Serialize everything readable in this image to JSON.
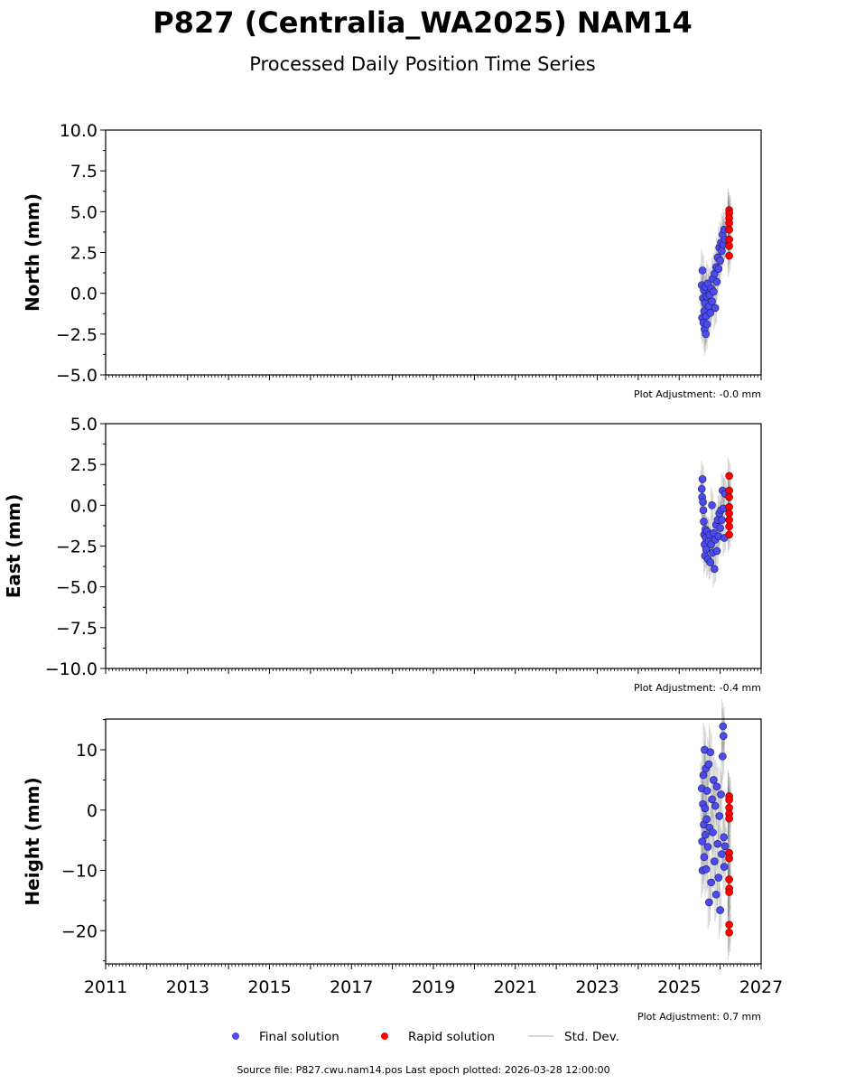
{
  "chart_data": {
    "type": "scatter",
    "title": "P827 (Centralia_WA2025) NAM14",
    "subtitle": "Processed Daily Position Time Series",
    "x_range": [
      2011,
      2027
    ],
    "x_ticks": [
      "2011",
      "2013",
      "2015",
      "2017",
      "2019",
      "2021",
      "2023",
      "2025",
      "2027"
    ],
    "legend": {
      "placement": "bottom-center",
      "entries": [
        {
          "label": "Final solution",
          "color": "#4b4bf0"
        },
        {
          "label": "Rapid solution",
          "color": "#ff0000"
        },
        {
          "label": "Std. Dev.",
          "color": "#cccccc"
        }
      ]
    },
    "footer": "Source file: P827.cwu.nam14.pos  Last epoch plotted: 2026-03-28 12:00:00",
    "panels": [
      {
        "ylabel": "North (mm)",
        "ylim": [
          -5,
          10
        ],
        "y_ticks": [
          "10.0",
          "7.5",
          "5.0",
          "2.5",
          "0.0",
          "−2.5",
          "−5.0"
        ],
        "y_tick_values": [
          10,
          7.5,
          5,
          2.5,
          0,
          -2.5,
          -5
        ],
        "adjustment": "Plot Adjustment: -0.0 mm",
        "sigma": 1.3,
        "final": [
          [
            2025.55,
            0.5
          ],
          [
            2025.56,
            -1.5
          ],
          [
            2025.57,
            1.4
          ],
          [
            2025.58,
            -0.3
          ],
          [
            2025.59,
            -1.8
          ],
          [
            2025.6,
            0.2
          ],
          [
            2025.61,
            -1.1
          ],
          [
            2025.62,
            -2.2
          ],
          [
            2025.63,
            -0.6
          ],
          [
            2025.64,
            0.4
          ],
          [
            2025.65,
            -2.5
          ],
          [
            2025.66,
            -1.4
          ],
          [
            2025.67,
            -0.2
          ],
          [
            2025.68,
            -1.9
          ],
          [
            2025.7,
            0.6
          ],
          [
            2025.72,
            -0.8
          ],
          [
            2025.74,
            -0.1
          ],
          [
            2025.76,
            -1.2
          ],
          [
            2025.78,
            0.3
          ],
          [
            2025.8,
            -0.5
          ],
          [
            2025.82,
            0.9
          ],
          [
            2025.84,
            0.1
          ],
          [
            2025.86,
            1.2
          ],
          [
            2025.88,
            -0.9
          ],
          [
            2025.9,
            1.6
          ],
          [
            2025.92,
            0.7
          ],
          [
            2025.94,
            2.2
          ],
          [
            2025.96,
            1.5
          ],
          [
            2025.98,
            2.8
          ],
          [
            2026.0,
            2.0
          ],
          [
            2026.02,
            3.1
          ],
          [
            2026.04,
            2.6
          ],
          [
            2026.06,
            3.6
          ],
          [
            2026.08,
            3.0
          ],
          [
            2026.1,
            3.9
          ],
          [
            2026.12,
            3.3
          ]
        ],
        "rapid": [
          [
            2026.22,
            5.1
          ],
          [
            2026.22,
            4.9
          ],
          [
            2026.22,
            4.6
          ],
          [
            2026.22,
            4.3
          ],
          [
            2026.22,
            3.9
          ],
          [
            2026.22,
            3.3
          ],
          [
            2026.22,
            2.9
          ],
          [
            2026.22,
            2.3
          ]
        ]
      },
      {
        "ylabel": "East (mm)",
        "ylim": [
          -10,
          5
        ],
        "y_ticks": [
          "5.0",
          "2.5",
          "0.0",
          "−2.5",
          "−5.0",
          "−7.5",
          "−10.0"
        ],
        "y_tick_values": [
          5,
          2.5,
          0,
          -2.5,
          -5,
          -7.5,
          -10
        ],
        "adjustment": "Plot Adjustment: -0.4 mm",
        "sigma": 1.1,
        "final": [
          [
            2025.55,
            1.0
          ],
          [
            2025.56,
            0.5
          ],
          [
            2025.57,
            1.6
          ],
          [
            2025.58,
            0.2
          ],
          [
            2025.59,
            -0.3
          ],
          [
            2025.6,
            -1.0
          ],
          [
            2025.61,
            -1.8
          ],
          [
            2025.62,
            -2.4
          ],
          [
            2025.63,
            -3.1
          ],
          [
            2025.64,
            -1.5
          ],
          [
            2025.65,
            -2.0
          ],
          [
            2025.66,
            -2.7
          ],
          [
            2025.68,
            -1.6
          ],
          [
            2025.7,
            -3.3
          ],
          [
            2025.72,
            -2.2
          ],
          [
            2025.74,
            -1.8
          ],
          [
            2025.76,
            -3.5
          ],
          [
            2025.78,
            -2.4
          ],
          [
            2025.8,
            -0.0
          ],
          [
            2025.82,
            -2.9
          ],
          [
            2025.84,
            -1.7
          ],
          [
            2025.86,
            -3.9
          ],
          [
            2025.88,
            -2.1
          ],
          [
            2025.9,
            -1.2
          ],
          [
            2025.92,
            -2.8
          ],
          [
            2025.94,
            -0.9
          ],
          [
            2025.96,
            -1.9
          ],
          [
            2025.98,
            -0.5
          ],
          [
            2026.0,
            -1.4
          ],
          [
            2026.02,
            -0.3
          ],
          [
            2026.04,
            -0.9
          ],
          [
            2026.06,
            0.9
          ],
          [
            2026.08,
            -0.2
          ],
          [
            2026.1,
            -2.0
          ],
          [
            2026.12,
            0.7
          ]
        ],
        "rapid": [
          [
            2026.22,
            1.8
          ],
          [
            2026.22,
            0.9
          ],
          [
            2026.22,
            0.5
          ],
          [
            2026.22,
            -0.1
          ],
          [
            2026.22,
            -0.5
          ],
          [
            2026.22,
            -0.9
          ],
          [
            2026.22,
            -1.3
          ],
          [
            2026.22,
            -1.8
          ]
        ]
      },
      {
        "ylabel": "Height (mm)",
        "ylim": [
          -25.5,
          15.1
        ],
        "y_ticks": [
          "10",
          "0",
          "−10",
          "−20"
        ],
        "y_tick_values": [
          10,
          0,
          -10,
          -20
        ],
        "adjustment": "Plot Adjustment: 0.7 mm",
        "sigma": 4.5,
        "final": [
          [
            2025.55,
            3.6
          ],
          [
            2025.56,
            -5.2
          ],
          [
            2025.57,
            -10.0
          ],
          [
            2025.58,
            1.0
          ],
          [
            2025.59,
            5.8
          ],
          [
            2025.6,
            -2.4
          ],
          [
            2025.61,
            -7.8
          ],
          [
            2025.62,
            10.0
          ],
          [
            2025.63,
            0.3
          ],
          [
            2025.64,
            -4.1
          ],
          [
            2025.65,
            6.9
          ],
          [
            2025.66,
            -9.8
          ],
          [
            2025.67,
            -1.5
          ],
          [
            2025.68,
            3.2
          ],
          [
            2025.7,
            -6.1
          ],
          [
            2025.72,
            7.6
          ],
          [
            2025.73,
            -15.3
          ],
          [
            2025.74,
            -2.9
          ],
          [
            2025.76,
            9.6
          ],
          [
            2025.78,
            -12.0
          ],
          [
            2025.8,
            1.8
          ],
          [
            2025.82,
            -3.7
          ],
          [
            2025.84,
            5.0
          ],
          [
            2025.86,
            -8.5
          ],
          [
            2025.88,
            0.7
          ],
          [
            2025.9,
            -14.0
          ],
          [
            2025.92,
            3.9
          ],
          [
            2025.94,
            -5.6
          ],
          [
            2025.96,
            -11.2
          ],
          [
            2025.98,
            -1.0
          ],
          [
            2026.0,
            -16.6
          ],
          [
            2026.02,
            2.6
          ],
          [
            2026.04,
            -7.3
          ],
          [
            2026.06,
            8.9
          ],
          [
            2026.07,
            13.9
          ],
          [
            2026.08,
            12.3
          ],
          [
            2026.09,
            -4.5
          ],
          [
            2026.1,
            -9.4
          ],
          [
            2026.12,
            -6.0
          ]
        ],
        "rapid": [
          [
            2026.22,
            2.3
          ],
          [
            2026.22,
            1.7
          ],
          [
            2026.22,
            0.4
          ],
          [
            2026.22,
            -0.6
          ],
          [
            2026.22,
            -1.4
          ],
          [
            2026.22,
            -7.1
          ],
          [
            2026.22,
            -8.0
          ],
          [
            2026.22,
            -11.5
          ],
          [
            2026.22,
            -13.0
          ],
          [
            2026.22,
            -13.6
          ],
          [
            2026.22,
            -19.0
          ],
          [
            2026.22,
            -20.3
          ]
        ]
      }
    ]
  }
}
